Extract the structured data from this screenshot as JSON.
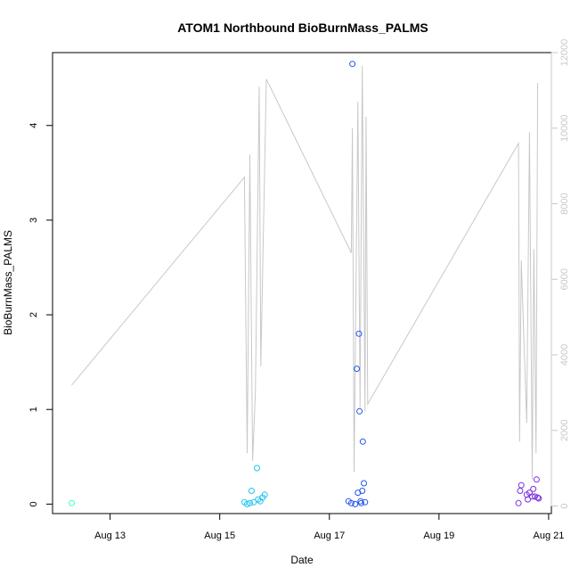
{
  "chart_data": {
    "type": "scatter",
    "title": "ATOM1 Northbound BioBurnMass_PALMS",
    "xlabel": "Date",
    "ylabel": "BioBurnMass_PALMS",
    "x_unit": "days (August)",
    "xlim": [
      11.95,
      21.05
    ],
    "ylim": [
      -0.1,
      4.77
    ],
    "x_ticks": [
      {
        "value": 13,
        "label": "Aug 13"
      },
      {
        "value": 15,
        "label": "Aug 15"
      },
      {
        "value": 17,
        "label": "Aug 17"
      },
      {
        "value": 19,
        "label": "Aug 19"
      },
      {
        "value": 21,
        "label": "Aug 21"
      }
    ],
    "y_ticks": [
      {
        "value": 0,
        "label": "0"
      },
      {
        "value": 1,
        "label": "1"
      },
      {
        "value": 2,
        "label": "2"
      },
      {
        "value": 3,
        "label": "3"
      },
      {
        "value": 4,
        "label": "4"
      }
    ],
    "y2_lim": [
      -200,
      12000
    ],
    "y2_ticks": [
      {
        "value": 0,
        "label": "0"
      },
      {
        "value": 2000,
        "label": "2000"
      },
      {
        "value": 4000,
        "label": "4000"
      },
      {
        "value": 6000,
        "label": "6000"
      },
      {
        "value": 8000,
        "label": "8000"
      },
      {
        "value": 10000,
        "label": "10000"
      },
      {
        "value": 12000,
        "label": "12000"
      }
    ],
    "grid": false,
    "legend": "none",
    "colors": {
      "line": "#c8c8c8",
      "axis": "#000000",
      "right_axis": "#c8c8c8"
    },
    "series": [
      {
        "color": "#33ffcc",
        "points": [
          [
            12.3,
            0.01
          ]
        ]
      },
      {
        "color": "#1cc3f0",
        "points": [
          [
            15.45,
            0.02
          ],
          [
            15.5,
            0.0
          ],
          [
            15.55,
            0.01
          ],
          [
            15.58,
            0.14
          ],
          [
            15.62,
            0.02
          ],
          [
            15.68,
            0.38
          ],
          [
            15.7,
            0.05
          ],
          [
            15.74,
            0.03
          ],
          [
            15.78,
            0.07
          ],
          [
            15.82,
            0.1
          ]
        ]
      },
      {
        "color": "#2255ee",
        "points": [
          [
            17.35,
            0.03
          ],
          [
            17.4,
            0.01
          ],
          [
            17.42,
            4.65
          ],
          [
            17.47,
            0.0
          ],
          [
            17.5,
            1.43
          ],
          [
            17.52,
            0.12
          ],
          [
            17.54,
            1.8
          ],
          [
            17.55,
            0.98
          ],
          [
            17.57,
            0.03
          ],
          [
            17.6,
            0.14
          ],
          [
            17.61,
            0.66
          ],
          [
            17.63,
            0.22
          ],
          [
            17.65,
            0.02
          ],
          [
            17.58,
            0.01
          ]
        ]
      },
      {
        "color": "#7b2fe0",
        "points": [
          [
            20.45,
            0.01
          ],
          [
            20.48,
            0.14
          ],
          [
            20.5,
            0.2
          ],
          [
            20.6,
            0.1
          ],
          [
            20.62,
            0.05
          ],
          [
            20.65,
            0.12
          ],
          [
            20.7,
            0.08
          ],
          [
            20.72,
            0.16
          ],
          [
            20.75,
            0.08
          ],
          [
            20.78,
            0.26
          ],
          [
            20.8,
            0.07
          ],
          [
            20.82,
            0.06
          ]
        ]
      }
    ],
    "line_series": {
      "axis": "right",
      "points": [
        [
          12.3,
          3200
        ],
        [
          15.45,
          8700
        ],
        [
          15.5,
          1400
        ],
        [
          15.55,
          9300
        ],
        [
          15.6,
          1200
        ],
        [
          15.65,
          3000
        ],
        [
          15.72,
          11100
        ],
        [
          15.75,
          3700
        ],
        [
          15.85,
          11300
        ],
        [
          17.4,
          6700
        ],
        [
          17.42,
          10000
        ],
        [
          17.45,
          900
        ],
        [
          17.52,
          10700
        ],
        [
          17.56,
          2600
        ],
        [
          17.6,
          11650
        ],
        [
          17.65,
          2500
        ],
        [
          17.67,
          10300
        ],
        [
          17.7,
          2700
        ],
        [
          20.45,
          9600
        ],
        [
          20.47,
          1700
        ],
        [
          20.5,
          6500
        ],
        [
          20.6,
          2200
        ],
        [
          20.65,
          9900
        ],
        [
          20.7,
          700
        ],
        [
          20.73,
          6800
        ],
        [
          20.77,
          1400
        ],
        [
          20.8,
          11200
        ]
      ]
    }
  }
}
